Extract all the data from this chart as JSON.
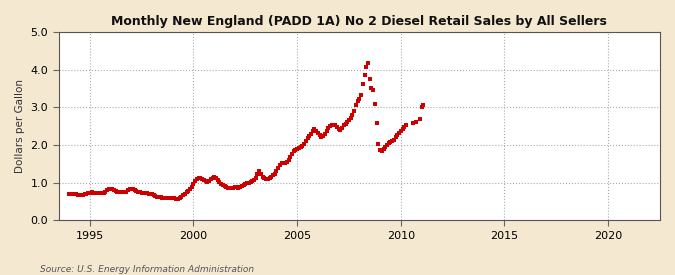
{
  "title": "Monthly New England (PADD 1A) No 2 Diesel Retail Sales by All Sellers",
  "ylabel": "Dollars per Gallon",
  "source": "Source: U.S. Energy Information Administration",
  "outer_bg": "#f5e8d0",
  "plot_bg": "#ffffff",
  "line_color": "#cc0000",
  "marker": "s",
  "marker_size": 2.5,
  "xlim": [
    1993.5,
    2022.5
  ],
  "ylim": [
    0.0,
    5.0
  ],
  "yticks": [
    0.0,
    1.0,
    2.0,
    3.0,
    4.0,
    5.0
  ],
  "xticks": [
    1995,
    2000,
    2005,
    2010,
    2015,
    2020
  ],
  "data": [
    [
      1994.0,
      0.71
    ],
    [
      1994.083,
      0.7
    ],
    [
      1994.167,
      0.69
    ],
    [
      1994.25,
      0.69
    ],
    [
      1994.333,
      0.69
    ],
    [
      1994.417,
      0.68
    ],
    [
      1994.5,
      0.67
    ],
    [
      1994.583,
      0.67
    ],
    [
      1994.667,
      0.68
    ],
    [
      1994.75,
      0.7
    ],
    [
      1994.833,
      0.71
    ],
    [
      1994.917,
      0.72
    ],
    [
      1995.0,
      0.73
    ],
    [
      1995.083,
      0.74
    ],
    [
      1995.167,
      0.73
    ],
    [
      1995.25,
      0.73
    ],
    [
      1995.333,
      0.72
    ],
    [
      1995.417,
      0.72
    ],
    [
      1995.5,
      0.72
    ],
    [
      1995.583,
      0.72
    ],
    [
      1995.667,
      0.73
    ],
    [
      1995.75,
      0.76
    ],
    [
      1995.833,
      0.8
    ],
    [
      1995.917,
      0.82
    ],
    [
      1996.0,
      0.84
    ],
    [
      1996.083,
      0.83
    ],
    [
      1996.167,
      0.8
    ],
    [
      1996.25,
      0.78
    ],
    [
      1996.333,
      0.76
    ],
    [
      1996.417,
      0.75
    ],
    [
      1996.5,
      0.74
    ],
    [
      1996.583,
      0.74
    ],
    [
      1996.667,
      0.74
    ],
    [
      1996.75,
      0.76
    ],
    [
      1996.833,
      0.8
    ],
    [
      1996.917,
      0.84
    ],
    [
      1997.0,
      0.83
    ],
    [
      1997.083,
      0.82
    ],
    [
      1997.167,
      0.8
    ],
    [
      1997.25,
      0.77
    ],
    [
      1997.333,
      0.75
    ],
    [
      1997.417,
      0.74
    ],
    [
      1997.5,
      0.73
    ],
    [
      1997.583,
      0.72
    ],
    [
      1997.667,
      0.72
    ],
    [
      1997.75,
      0.72
    ],
    [
      1997.833,
      0.71
    ],
    [
      1997.917,
      0.71
    ],
    [
      1998.0,
      0.69
    ],
    [
      1998.083,
      0.67
    ],
    [
      1998.167,
      0.65
    ],
    [
      1998.25,
      0.63
    ],
    [
      1998.333,
      0.62
    ],
    [
      1998.417,
      0.61
    ],
    [
      1998.5,
      0.6
    ],
    [
      1998.583,
      0.59
    ],
    [
      1998.667,
      0.59
    ],
    [
      1998.75,
      0.59
    ],
    [
      1998.833,
      0.59
    ],
    [
      1998.917,
      0.59
    ],
    [
      1999.0,
      0.59
    ],
    [
      1999.083,
      0.58
    ],
    [
      1999.167,
      0.57
    ],
    [
      1999.25,
      0.57
    ],
    [
      1999.333,
      0.59
    ],
    [
      1999.417,
      0.62
    ],
    [
      1999.5,
      0.66
    ],
    [
      1999.583,
      0.7
    ],
    [
      1999.667,
      0.74
    ],
    [
      1999.75,
      0.78
    ],
    [
      1999.833,
      0.83
    ],
    [
      1999.917,
      0.88
    ],
    [
      2000.0,
      0.97
    ],
    [
      2000.083,
      1.05
    ],
    [
      2000.167,
      1.1
    ],
    [
      2000.25,
      1.12
    ],
    [
      2000.333,
      1.13
    ],
    [
      2000.417,
      1.1
    ],
    [
      2000.5,
      1.07
    ],
    [
      2000.583,
      1.04
    ],
    [
      2000.667,
      1.03
    ],
    [
      2000.75,
      1.05
    ],
    [
      2000.833,
      1.09
    ],
    [
      2000.917,
      1.12
    ],
    [
      2001.0,
      1.14
    ],
    [
      2001.083,
      1.12
    ],
    [
      2001.167,
      1.06
    ],
    [
      2001.25,
      1.01
    ],
    [
      2001.333,
      0.97
    ],
    [
      2001.417,
      0.93
    ],
    [
      2001.5,
      0.9
    ],
    [
      2001.583,
      0.88
    ],
    [
      2001.667,
      0.87
    ],
    [
      2001.75,
      0.87
    ],
    [
      2001.833,
      0.87
    ],
    [
      2001.917,
      0.87
    ],
    [
      2002.0,
      0.88
    ],
    [
      2002.083,
      0.88
    ],
    [
      2002.167,
      0.87
    ],
    [
      2002.25,
      0.88
    ],
    [
      2002.333,
      0.9
    ],
    [
      2002.417,
      0.93
    ],
    [
      2002.5,
      0.96
    ],
    [
      2002.583,
      0.98
    ],
    [
      2002.667,
      1.0
    ],
    [
      2002.75,
      1.02
    ],
    [
      2002.833,
      1.04
    ],
    [
      2002.917,
      1.06
    ],
    [
      2003.0,
      1.12
    ],
    [
      2003.083,
      1.22
    ],
    [
      2003.167,
      1.3
    ],
    [
      2003.25,
      1.23
    ],
    [
      2003.333,
      1.16
    ],
    [
      2003.417,
      1.12
    ],
    [
      2003.5,
      1.1
    ],
    [
      2003.583,
      1.1
    ],
    [
      2003.667,
      1.12
    ],
    [
      2003.75,
      1.15
    ],
    [
      2003.833,
      1.19
    ],
    [
      2003.917,
      1.23
    ],
    [
      2004.0,
      1.32
    ],
    [
      2004.083,
      1.4
    ],
    [
      2004.167,
      1.47
    ],
    [
      2004.25,
      1.52
    ],
    [
      2004.333,
      1.53
    ],
    [
      2004.417,
      1.53
    ],
    [
      2004.5,
      1.56
    ],
    [
      2004.583,
      1.6
    ],
    [
      2004.667,
      1.67
    ],
    [
      2004.75,
      1.77
    ],
    [
      2004.833,
      1.85
    ],
    [
      2004.917,
      1.87
    ],
    [
      2005.0,
      1.9
    ],
    [
      2005.083,
      1.92
    ],
    [
      2005.167,
      1.95
    ],
    [
      2005.25,
      1.98
    ],
    [
      2005.333,
      2.03
    ],
    [
      2005.417,
      2.1
    ],
    [
      2005.5,
      2.18
    ],
    [
      2005.583,
      2.25
    ],
    [
      2005.667,
      2.3
    ],
    [
      2005.75,
      2.36
    ],
    [
      2005.833,
      2.42
    ],
    [
      2005.917,
      2.37
    ],
    [
      2006.0,
      2.32
    ],
    [
      2006.083,
      2.27
    ],
    [
      2006.167,
      2.22
    ],
    [
      2006.25,
      2.24
    ],
    [
      2006.333,
      2.3
    ],
    [
      2006.417,
      2.37
    ],
    [
      2006.5,
      2.44
    ],
    [
      2006.583,
      2.5
    ],
    [
      2006.667,
      2.52
    ],
    [
      2006.75,
      2.54
    ],
    [
      2006.833,
      2.52
    ],
    [
      2006.917,
      2.47
    ],
    [
      2007.0,
      2.42
    ],
    [
      2007.083,
      2.4
    ],
    [
      2007.167,
      2.44
    ],
    [
      2007.25,
      2.52
    ],
    [
      2007.333,
      2.57
    ],
    [
      2007.417,
      2.62
    ],
    [
      2007.5,
      2.67
    ],
    [
      2007.583,
      2.72
    ],
    [
      2007.667,
      2.8
    ],
    [
      2007.75,
      2.9
    ],
    [
      2007.833,
      3.07
    ],
    [
      2007.917,
      3.17
    ],
    [
      2008.0,
      3.22
    ],
    [
      2008.083,
      3.32
    ],
    [
      2008.167,
      3.62
    ],
    [
      2008.25,
      3.87
    ],
    [
      2008.333,
      4.07
    ],
    [
      2008.417,
      4.18
    ],
    [
      2008.5,
      3.75
    ],
    [
      2008.583,
      3.5
    ],
    [
      2008.667,
      3.45
    ],
    [
      2008.75,
      3.1
    ],
    [
      2008.833,
      2.58
    ],
    [
      2008.917,
      2.02
    ],
    [
      2009.0,
      1.87
    ],
    [
      2009.083,
      1.84
    ],
    [
      2009.167,
      1.89
    ],
    [
      2009.25,
      1.95
    ],
    [
      2009.333,
      2.0
    ],
    [
      2009.417,
      2.05
    ],
    [
      2009.5,
      2.08
    ],
    [
      2009.583,
      2.1
    ],
    [
      2009.667,
      2.14
    ],
    [
      2009.75,
      2.2
    ],
    [
      2009.833,
      2.27
    ],
    [
      2009.917,
      2.32
    ],
    [
      2010.0,
      2.37
    ],
    [
      2010.083,
      2.42
    ],
    [
      2010.167,
      2.47
    ],
    [
      2010.25,
      2.52
    ],
    [
      2010.583,
      2.58
    ],
    [
      2010.75,
      2.62
    ],
    [
      2010.917,
      2.7
    ],
    [
      2011.0,
      3.0
    ],
    [
      2011.083,
      3.05
    ]
  ]
}
